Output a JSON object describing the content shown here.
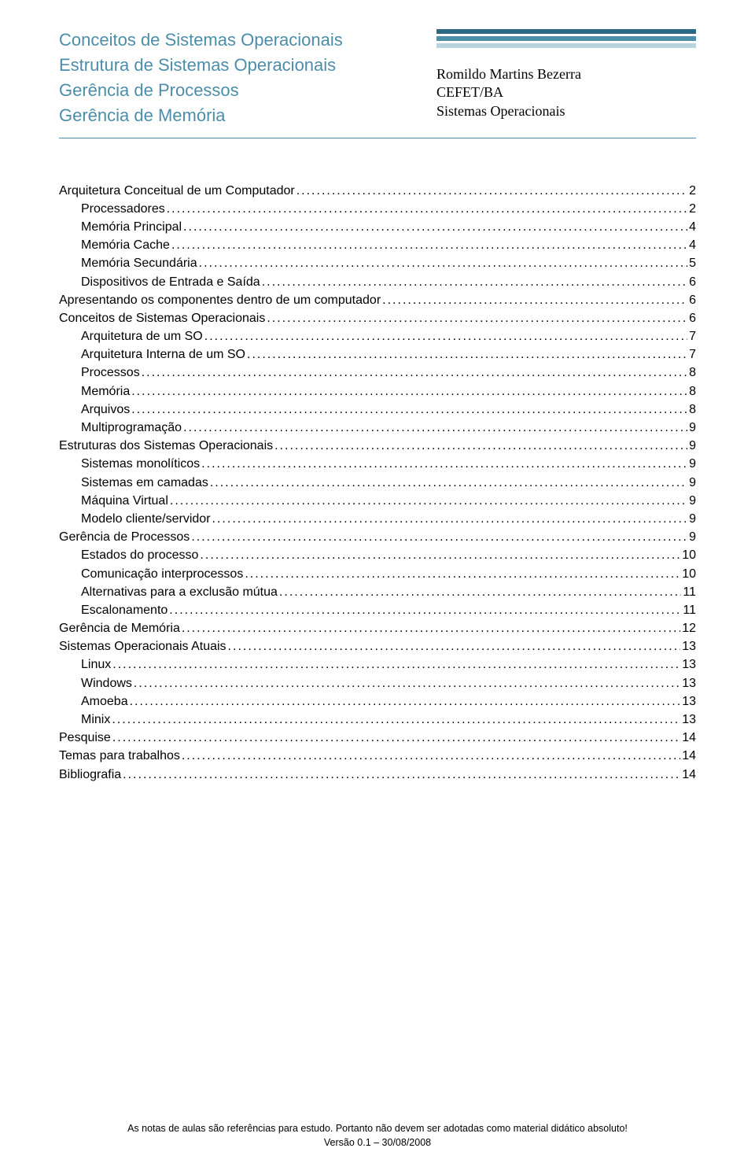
{
  "header": {
    "titles": [
      "Conceitos de Sistemas Operacionais",
      "Estrutura de Sistemas Operacionais",
      "Gerência de Processos",
      "Gerência de Memória"
    ],
    "stripe_colors": [
      "#2c6881",
      "#4c8da8",
      "#b9d3de"
    ],
    "author": {
      "name": "Romildo Martins Bezerra",
      "institution": "CEFET/BA",
      "course": "Sistemas Operacionais"
    }
  },
  "toc": [
    {
      "label": "Arquitetura Conceitual de um Computador",
      "page": "2",
      "indent": 0
    },
    {
      "label": "Processadores",
      "page": "2",
      "indent": 1
    },
    {
      "label": "Memória Principal",
      "page": "4",
      "indent": 1
    },
    {
      "label": "Memória Cache",
      "page": "4",
      "indent": 1
    },
    {
      "label": "Memória Secundária",
      "page": "5",
      "indent": 1
    },
    {
      "label": "Dispositivos de Entrada e Saída",
      "page": "6",
      "indent": 1
    },
    {
      "label": "Apresentando os componentes dentro de um computador",
      "page": "6",
      "indent": 0
    },
    {
      "label": "Conceitos de Sistemas Operacionais",
      "page": "6",
      "indent": 0
    },
    {
      "label": "Arquitetura de um SO",
      "page": "7",
      "indent": 1
    },
    {
      "label": "Arquitetura Interna de um SO",
      "page": "7",
      "indent": 1
    },
    {
      "label": "Processos",
      "page": "8",
      "indent": 1
    },
    {
      "label": "Memória",
      "page": "8",
      "indent": 1
    },
    {
      "label": "Arquivos",
      "page": "8",
      "indent": 1
    },
    {
      "label": "Multiprogramação",
      "page": "9",
      "indent": 1
    },
    {
      "label": "Estruturas dos Sistemas Operacionais",
      "page": "9",
      "indent": 0
    },
    {
      "label": "Sistemas monolíticos",
      "page": "9",
      "indent": 1
    },
    {
      "label": "Sistemas em camadas",
      "page": "9",
      "indent": 1
    },
    {
      "label": "Máquina Virtual",
      "page": "9",
      "indent": 1
    },
    {
      "label": "Modelo cliente/servidor",
      "page": "9",
      "indent": 1
    },
    {
      "label": "Gerência de Processos",
      "page": "9",
      "indent": 0
    },
    {
      "label": "Estados do processo",
      "page": "10",
      "indent": 1
    },
    {
      "label": "Comunicação interprocessos",
      "page": "10",
      "indent": 1
    },
    {
      "label": "Alternativas para a exclusão mútua",
      "page": "11",
      "indent": 1
    },
    {
      "label": "Escalonamento",
      "page": "11",
      "indent": 1
    },
    {
      "label": "Gerência de Memória",
      "page": "12",
      "indent": 0
    },
    {
      "label": "Sistemas Operacionais Atuais",
      "page": "13",
      "indent": 0
    },
    {
      "label": "Linux",
      "page": "13",
      "indent": 1
    },
    {
      "label": "Windows",
      "page": "13",
      "indent": 1
    },
    {
      "label": "Amoeba",
      "page": "13",
      "indent": 1
    },
    {
      "label": "Minix",
      "page": "13",
      "indent": 1
    },
    {
      "label": "Pesquise",
      "page": "14",
      "indent": 0
    },
    {
      "label": "Temas para trabalhos",
      "page": "14",
      "indent": 0
    },
    {
      "label": "Bibliografia",
      "page": "14",
      "indent": 0
    }
  ],
  "footer": {
    "line1": "As notas de aulas são referências para estudo. Portanto não devem ser adotadas como material didático absoluto!",
    "line2": "Versão 0.1 – 30/08/2008"
  }
}
